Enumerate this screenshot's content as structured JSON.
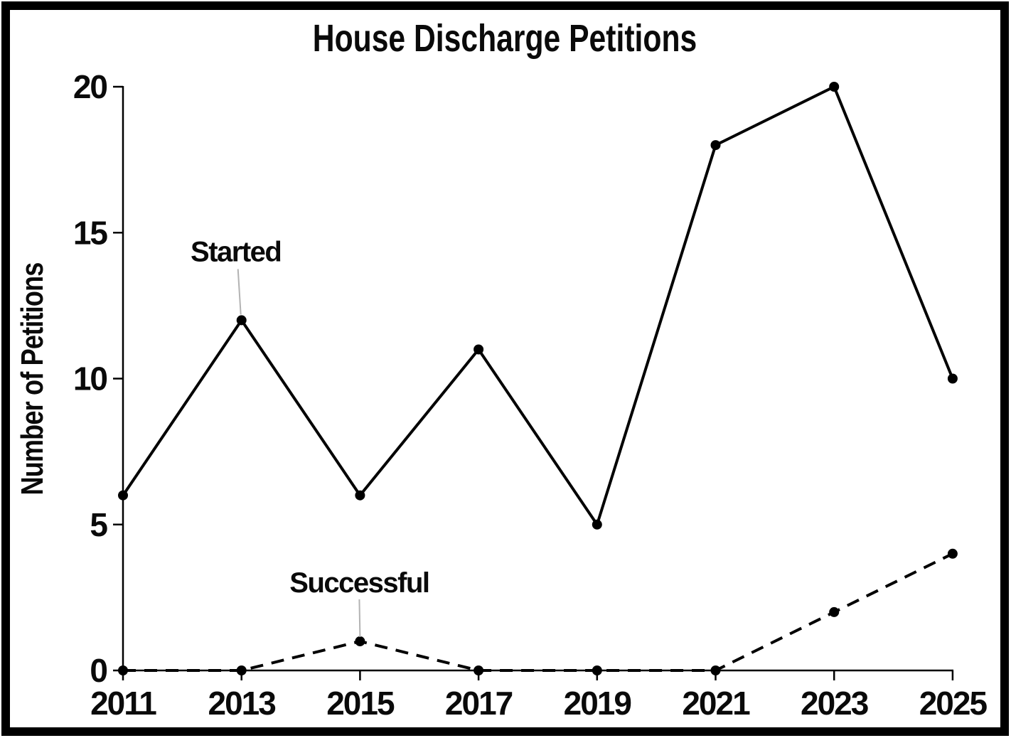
{
  "chart_data": {
    "type": "line",
    "title": "House Discharge Petitions",
    "ylabel": "Number of Petitions",
    "categories": [
      "2011",
      "2013",
      "2015",
      "2017",
      "2019",
      "2021",
      "2023",
      "2025"
    ],
    "yticks": [
      "0",
      "5",
      "10",
      "15",
      "20"
    ],
    "ylim": [
      0,
      20
    ],
    "grid": false,
    "legend": "inline-annotations",
    "series": [
      {
        "name": "Started",
        "style": "solid",
        "values": [
          6,
          12,
          6,
          11,
          5,
          18,
          20,
          10
        ]
      },
      {
        "name": "Successful",
        "style": "dashed",
        "values": [
          0,
          0,
          1,
          0,
          0,
          0,
          2,
          4
        ]
      }
    ],
    "annotations": [
      {
        "text": "Started",
        "x": "2013",
        "y": 12
      },
      {
        "text": "Successful",
        "x": "2015",
        "y": 1
      }
    ],
    "colors": {
      "line": "#000000",
      "marker": "#000000",
      "leader_line": "#b3b3b3",
      "frame": "#000000",
      "background": "#ffffff",
      "text": "#0a0a0a"
    }
  }
}
